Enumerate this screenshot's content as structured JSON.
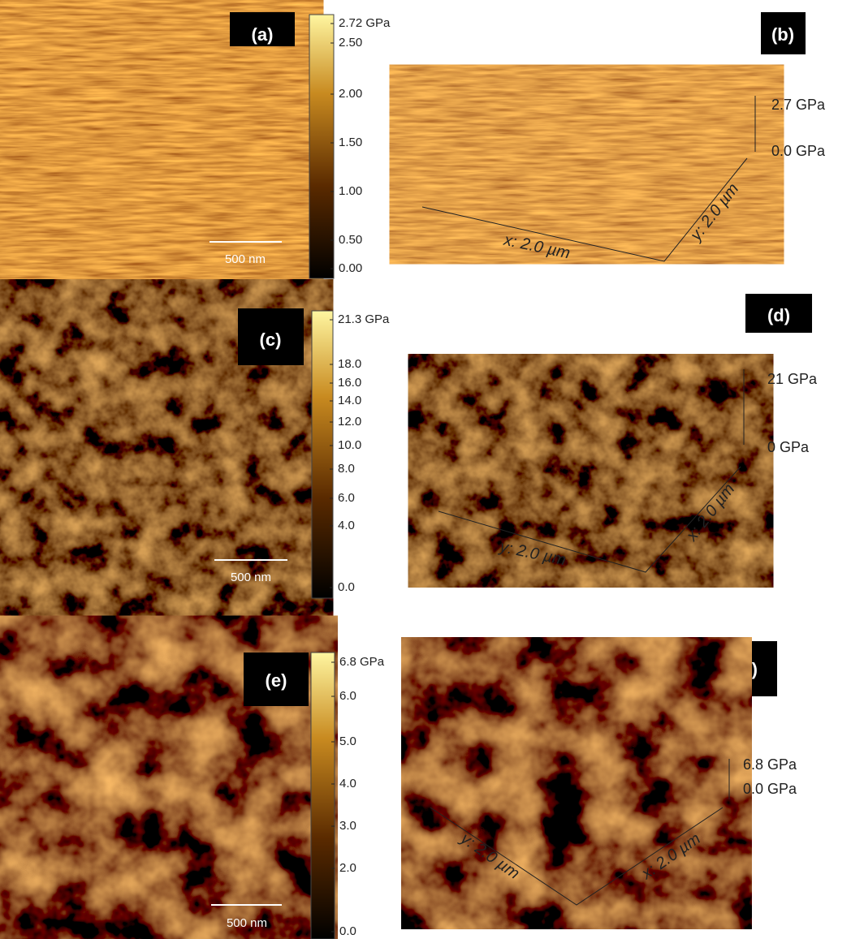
{
  "panels": [
    {
      "label": "(a)",
      "scale_bar": "500 nm",
      "colorbar": [
        "2.72 GPa",
        "2.50",
        "2.00",
        "1.50",
        "1.00",
        "0.50",
        "0.00"
      ]
    },
    {
      "label": "(b)",
      "z_labels": [
        "2.7 GPa",
        "0.0 GPa"
      ],
      "x_label": "x: 2.0 µm",
      "y_label": "y: 2.0 µm"
    },
    {
      "label": "(c)",
      "scale_bar": "500 nm",
      "colorbar": [
        "21.3 GPa",
        "18.0",
        "16.0",
        "14.0",
        "12.0",
        "10.0",
        "8.0",
        "6.0",
        "4.0",
        "0.0"
      ]
    },
    {
      "label": "(d)",
      "z_labels": [
        "21 GPa",
        "0 GPa"
      ],
      "x_label": "y: 2.0 µm",
      "y_label": "x: 2.0 µm"
    },
    {
      "label": "(e)",
      "scale_bar": "500 nm",
      "colorbar": [
        "6.8 GPa",
        "6.0",
        "5.0",
        "4.0",
        "3.0",
        "2.0",
        "0.0"
      ]
    },
    {
      "label": "(f)",
      "z_labels": [
        "6.8 GPa",
        "0.0 GPa"
      ],
      "x_label": "y: 2.0 µm",
      "y_label": "x: 2.0 µm"
    }
  ]
}
